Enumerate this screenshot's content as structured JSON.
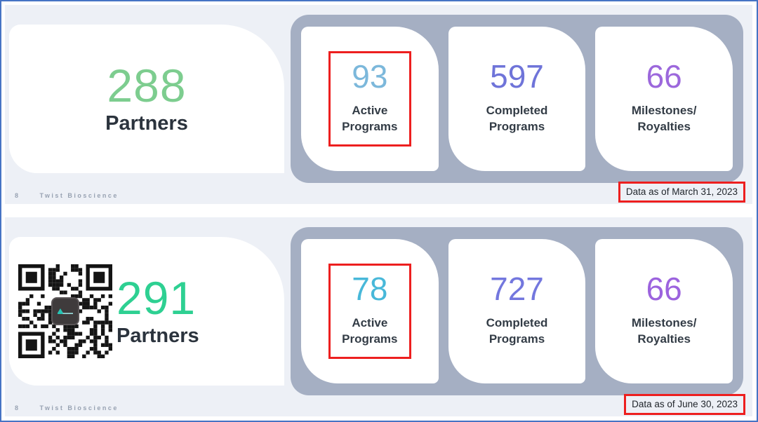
{
  "page": {
    "frame_border_color": "#4673c4",
    "slide_background": "#edf0f6",
    "panel_color": "#a5afc3",
    "highlight_color": "#ed1f1f"
  },
  "slides": [
    {
      "page_number": "8",
      "brand": "Twist Bioscience",
      "data_as_of": "Data as of March 31, 2023",
      "partners": {
        "value": "288",
        "label": "Partners",
        "color": "#7dcd8f"
      },
      "stats": [
        {
          "value": "93",
          "label_line1": "Active",
          "label_line2": "Programs",
          "color": "#7cb8db",
          "highlighted": true
        },
        {
          "value": "597",
          "label_line1": "Completed",
          "label_line2": "Programs",
          "color": "#6f74d9",
          "highlighted": false
        },
        {
          "value": "66",
          "label_line1": "Milestones/",
          "label_line2": "Royalties",
          "color": "#9c68dc",
          "highlighted": false
        }
      ]
    },
    {
      "page_number": "8",
      "brand": "Twist Bioscience",
      "data_as_of": "Data as of June 30, 2023",
      "partners": {
        "value": "291",
        "label": "Partners",
        "color": "#2ed092"
      },
      "stats": [
        {
          "value": "78",
          "label_line1": "Active",
          "label_line2": "Programs",
          "color": "#48b8d9",
          "highlighted": true
        },
        {
          "value": "727",
          "label_line1": "Completed",
          "label_line2": "Programs",
          "color": "#7377de",
          "highlighted": false
        },
        {
          "value": "66",
          "label_line1": "Milestones/",
          "label_line2": "Royalties",
          "color": "#9c63de",
          "highlighted": false
        }
      ]
    }
  ]
}
